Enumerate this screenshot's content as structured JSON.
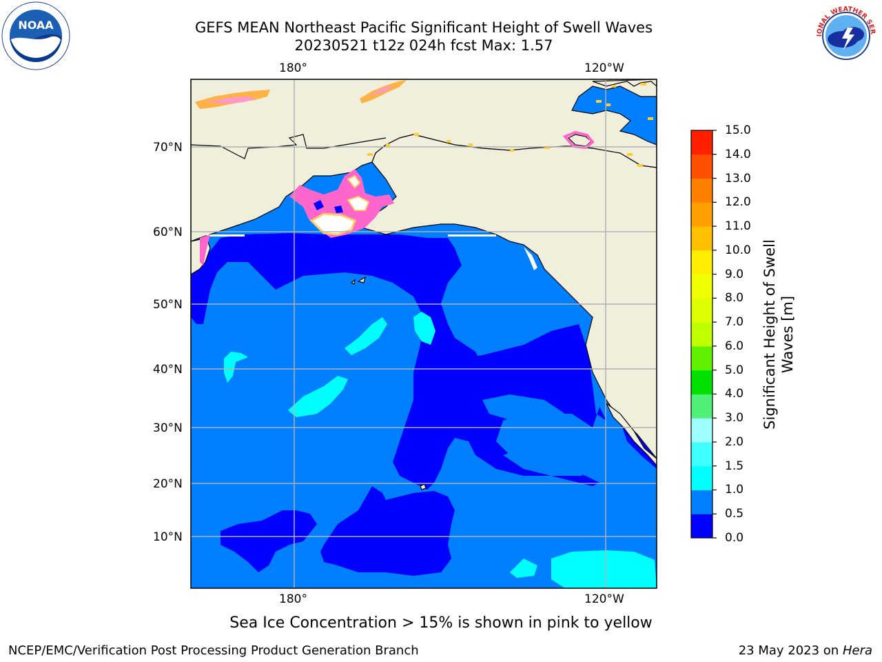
{
  "header": {
    "title_line1": "GEFS MEAN Northeast Pacific Significant Height of Swell Waves",
    "title_line2": "20230521 t12z 024h fcst   Max: 1.57"
  },
  "logos": {
    "left": {
      "name": "noaa-logo-icon",
      "text": "NOAA"
    },
    "right": {
      "name": "nws-logo-icon",
      "text": "NATIONAL WEATHER SERVICE"
    }
  },
  "map": {
    "projection": "mercator",
    "lon_labels_top": [
      "180°",
      "120°W"
    ],
    "lon_labels_bottom": [
      "180°",
      "120°W"
    ],
    "lat_labels": [
      "70°N",
      "60°N",
      "50°N",
      "40°N",
      "30°N",
      "20°N",
      "10°N"
    ],
    "grid": true,
    "colors": {
      "land": "#efefdc",
      "coast": "#000000",
      "grid": "#b0b0b0",
      "ice_pink": "#ff66cc",
      "ice_orange": "#ffb347"
    }
  },
  "colorbar": {
    "ticks": [
      "15.0",
      "14.0",
      "13.0",
      "12.0",
      "11.0",
      "10.0",
      "9.0",
      "8.0",
      "7.0",
      "6.0",
      "5.0",
      "4.0",
      "3.0",
      "2.0",
      "1.5",
      "1.0",
      "0.5",
      "0.0"
    ],
    "label": "Significant Height of Swell Waves [m]",
    "label_line1": "Significant Height of Swell",
    "label_line2": "Waves [m]",
    "levels": [
      {
        "range": "0.0-0.5",
        "color": "#0000ff"
      },
      {
        "range": "0.5-1.0",
        "color": "#0080ff"
      },
      {
        "range": "1.0-1.5",
        "color": "#00ffff"
      },
      {
        "range": "1.5-2.0",
        "color": "#40ffff"
      },
      {
        "range": "2.0-3.0",
        "color": "#a0ffff"
      },
      {
        "range": "3.0-4.0",
        "color": "#50f078"
      },
      {
        "range": "4.0-5.0",
        "color": "#00e000"
      },
      {
        "range": "5.0-6.0",
        "color": "#60f000"
      },
      {
        "range": "6.0-7.0",
        "color": "#c0ff00"
      },
      {
        "range": "7.0-8.0",
        "color": "#dfff00"
      },
      {
        "range": "8.0-9.0",
        "color": "#f0ff00"
      },
      {
        "range": "9.0-10.0",
        "color": "#ffee00"
      },
      {
        "range": "10.0-11.0",
        "color": "#ffc000"
      },
      {
        "range": "11.0-12.0",
        "color": "#ffa000"
      },
      {
        "range": "12.0-13.0",
        "color": "#ff8000"
      },
      {
        "range": "13.0-14.0",
        "color": "#ff5000"
      },
      {
        "range": "14.0-15.0",
        "color": "#ff2000"
      },
      {
        "range": "15.0+",
        "color": "#ff0000"
      }
    ]
  },
  "note": "Sea Ice Concentration > 15% is shown in pink to yellow",
  "footer": {
    "left": "NCEP/EMC/Verification Post Processing Product Generation Branch",
    "right_prefix": "23 May 2023 on ",
    "right_machine": "Hera"
  }
}
